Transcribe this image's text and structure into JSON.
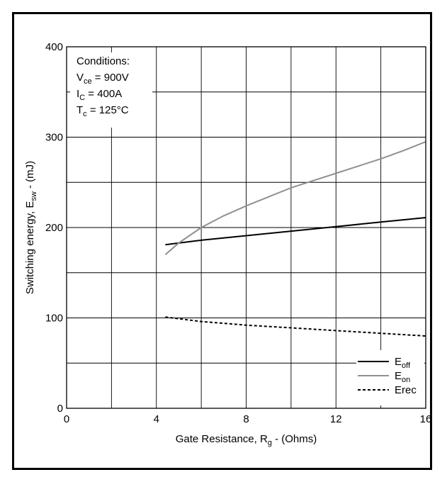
{
  "chart_data": {
    "type": "line",
    "xlabel": {
      "main": "Gate Resistance, R",
      "sub": "g",
      "tail": " - (Ohms)"
    },
    "ylabel": {
      "main": "Switching energy, E",
      "sub": "sw",
      "tail": " - (mJ)"
    },
    "xlim": [
      0,
      16
    ],
    "ylim": [
      0,
      400
    ],
    "xticks": [
      0,
      4,
      8,
      12,
      16
    ],
    "yticks": [
      0,
      100,
      200,
      300,
      400
    ],
    "grid": true,
    "grid_x_step": 2,
    "grid_y_step": 50,
    "conditions": {
      "title": "Conditions:",
      "lines": [
        {
          "main": "V",
          "sub": "ce",
          "tail": " = 900V"
        },
        {
          "main": "I",
          "sub": "C",
          "tail": " = 400A"
        },
        {
          "main": "T",
          "sub": "c",
          "tail": " = 125°C"
        }
      ]
    },
    "legend_position": "bottom-right",
    "series": [
      {
        "name": "E_off",
        "label_main": "E",
        "label_sub": "off",
        "color": "#000000",
        "dash": "",
        "x": [
          4.4,
          6,
          8,
          10,
          12,
          14,
          16
        ],
        "y": [
          181,
          186,
          191,
          196,
          201,
          206,
          211
        ]
      },
      {
        "name": "E_on",
        "label_main": "E",
        "label_sub": "on",
        "color": "#909090",
        "dash": "",
        "x": [
          4.4,
          5,
          6,
          7,
          8,
          9,
          10,
          11,
          12,
          13,
          14,
          15,
          16
        ],
        "y": [
          170,
          183,
          200,
          213,
          224,
          234,
          244,
          252,
          260,
          268,
          276,
          285,
          295
        ]
      },
      {
        "name": "E_rec",
        "label_main": "Erec",
        "label_sub": "",
        "color": "#000000",
        "dash": "4,3",
        "x": [
          4.4,
          6,
          8,
          10,
          12,
          14,
          16
        ],
        "y": [
          101,
          96,
          92,
          89,
          86,
          83,
          80
        ]
      }
    ]
  }
}
